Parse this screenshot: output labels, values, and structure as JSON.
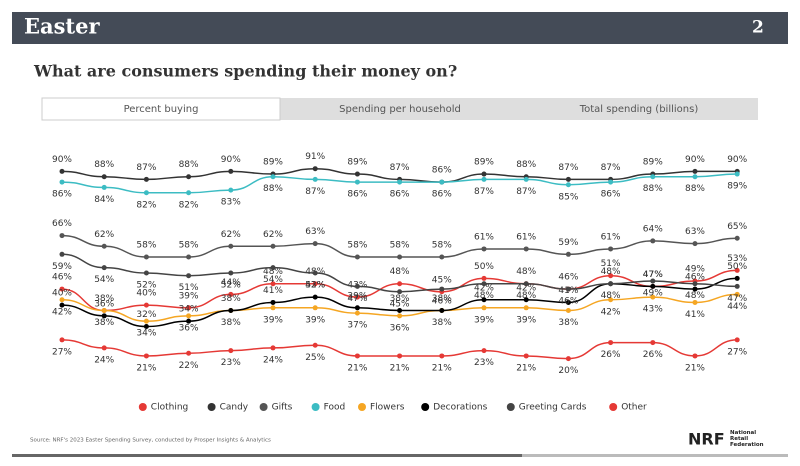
{
  "header": {
    "title": "Easter",
    "page": "2"
  },
  "subtitle": "What are consumers spending their money on?",
  "tabs": [
    "Percent buying",
    "Spending per household",
    "Total spending (billions)"
  ],
  "source": "Source: NRF's 2023 Easter Spending Survey, conducted by Prosper Insights & Analytics",
  "logo": {
    "mark": "NRF",
    "name": "National Retail Federation"
  },
  "chart_data": {
    "type": "line",
    "categories": [
      null,
      null,
      null,
      null,
      null,
      null,
      null,
      null,
      null,
      null,
      null,
      null,
      null,
      null,
      null,
      null,
      null
    ],
    "ylim": [
      15,
      95
    ],
    "series": [
      {
        "name": "Clothing",
        "color": "#e53935",
        "values": [
          46,
          38,
          40,
          39,
          44,
          48,
          48,
          43,
          48,
          45,
          50,
          48,
          46,
          51,
          47,
          49,
          53
        ],
        "value_labels": [
          "46%",
          "38%",
          "40%",
          "39%",
          "44%",
          "48%",
          "48%",
          "43%",
          "48%",
          "45%",
          "50%",
          "48%",
          "46%",
          "51%",
          "47%",
          "49%",
          "53%"
        ]
      },
      {
        "name": "Candy",
        "color": "#333333",
        "values": [
          90,
          88,
          87,
          88,
          90,
          89,
          91,
          89,
          87,
          86,
          89,
          88,
          87,
          87,
          89,
          90,
          90
        ],
        "value_labels": [
          "90%",
          "88%",
          "87%",
          "88%",
          "90%",
          "89%",
          "91%",
          "89%",
          "87%",
          "86%",
          "89%",
          "88%",
          "87%",
          "87%",
          "89%",
          "90%",
          "90%"
        ]
      },
      {
        "name": "Gifts",
        "color": "#555555",
        "values": [
          66,
          62,
          58,
          58,
          62,
          62,
          63,
          58,
          58,
          58,
          61,
          61,
          59,
          61,
          64,
          63,
          65
        ],
        "value_labels": [
          "66%",
          "62%",
          "58%",
          "58%",
          "62%",
          "62%",
          "63%",
          "58%",
          "58%",
          "58%",
          "61%",
          "61%",
          "59%",
          "61%",
          "64%",
          "63%",
          "65%"
        ]
      },
      {
        "name": "Food",
        "color": "#3cbcc3",
        "values": [
          86,
          84,
          82,
          82,
          83,
          88,
          87,
          86,
          86,
          86,
          87,
          87,
          85,
          86,
          88,
          88,
          89
        ],
        "value_labels": [
          "86%",
          "84%",
          "82%",
          "82%",
          "83%",
          "88%",
          "87%",
          "86%",
          "86%",
          "86%",
          "87%",
          "87%",
          "85%",
          "86%",
          "88%",
          "88%",
          "89%"
        ]
      },
      {
        "name": "Flowers",
        "color": "#f5a623",
        "values": [
          42,
          38,
          34,
          36,
          38,
          39,
          39,
          37,
          36,
          38,
          39,
          39,
          38,
          42,
          43,
          41,
          44
        ],
        "value_labels": [
          "42%",
          "38%",
          "34%",
          "36%",
          "38%",
          "39%",
          "39%",
          "37%",
          "36%",
          "38%",
          "39%",
          "39%",
          "38%",
          "42%",
          "43%",
          "41%",
          "44%"
        ]
      },
      {
        "name": "Decorations",
        "color": "#000000",
        "values": [
          40,
          36,
          32,
          34,
          38,
          41,
          43,
          39,
          38,
          38,
          42,
          42,
          41,
          48,
          47,
          46,
          50
        ],
        "value_labels": [
          "40%",
          "36%",
          "32%",
          "34%",
          "38%",
          "41%",
          "43%",
          "39%",
          "38%",
          "38%",
          "42%",
          "42%",
          "41%",
          "48%",
          "47%",
          "46%",
          "50%"
        ]
      },
      {
        "name": "Greeting Cards",
        "color": "#444444",
        "values": [
          59,
          54,
          52,
          51,
          52,
          54,
          52,
          47,
          45,
          46,
          48,
          48,
          46,
          48,
          49,
          48,
          47
        ],
        "value_labels": [
          "59%",
          "54%",
          "52%",
          "51%",
          "52%",
          "54%",
          "52%",
          "47%",
          "45%",
          "46%",
          "48%",
          "48%",
          "46%",
          "48%",
          "49%",
          "48%",
          "47%"
        ]
      },
      {
        "name": "Other",
        "color": "#e53935",
        "values": [
          27,
          24,
          21,
          22,
          23,
          24,
          25,
          21,
          21,
          21,
          23,
          21,
          20,
          26,
          26,
          21,
          27
        ],
        "value_labels": [
          "27%",
          "24%",
          "21%",
          "22%",
          "23%",
          "24%",
          "25%",
          "21%",
          "21%",
          "21%",
          "23%",
          "21%",
          "20%",
          "26%",
          "26%",
          "21%",
          "27%"
        ]
      }
    ]
  }
}
